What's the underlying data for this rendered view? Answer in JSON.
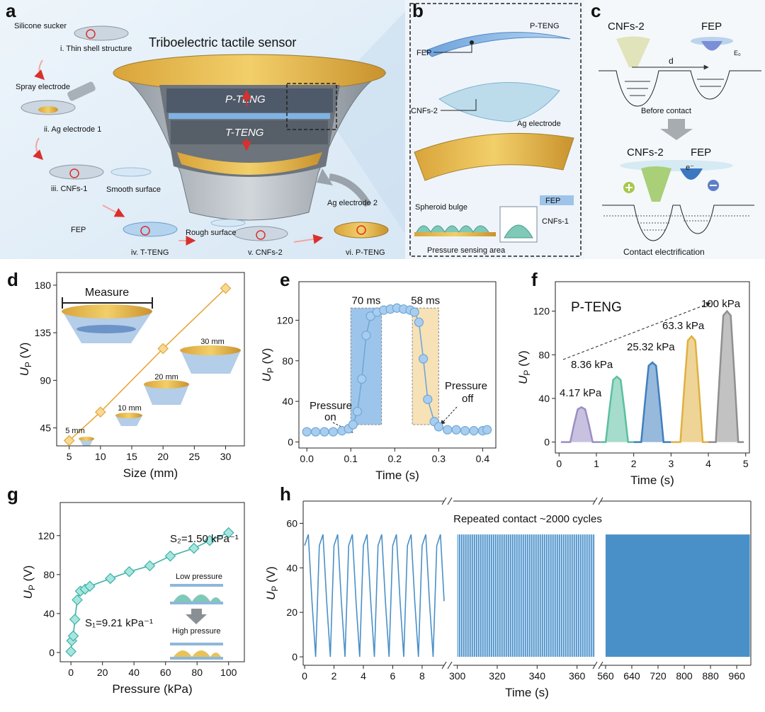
{
  "diagrams": {
    "a": {
      "label": "a",
      "title": "Triboelectric tactile sensor",
      "layers": [
        "P-TENG",
        "T-TENG"
      ],
      "steps": [
        "Silicone sucker",
        "i. Thin shell structure",
        "Spray electrode",
        "ii. Ag electrode 1",
        "iii. CNFs-1",
        "Smooth surface",
        "FEP",
        "iv. T-TENG",
        "Rough surface",
        "v. CNFs-2",
        "Ag electrode 2",
        "vi. P-TENG"
      ]
    },
    "b": {
      "label": "b",
      "labels": [
        "P-TENG",
        "FEP",
        "CNFs-2",
        "Ag electrode",
        "Spheroid bulge",
        "FEP",
        "CNFs-1",
        "Pressure sensing area"
      ]
    },
    "c": {
      "label": "c",
      "labels": [
        "CNFs-2",
        "FEP",
        "d",
        "E₀",
        "Before contact",
        "CNFs-2",
        "FEP",
        "e⁻",
        "Contact electrification"
      ]
    }
  },
  "chart_data": [
    {
      "type": "line",
      "panel": "d",
      "xlabel": "Size (mm)",
      "ylabel": {
        "symbol": "U",
        "subscript": "P",
        "unit": " (V)"
      },
      "x": [
        5,
        10,
        20,
        30
      ],
      "series": [
        {
          "color": "#e3a83e",
          "marker_fill": "#f8d993",
          "values": [
            33,
            60,
            120,
            177
          ]
        }
      ],
      "markers": "diamond",
      "xlim": [
        3,
        33
      ],
      "ylim": [
        28,
        192
      ],
      "xticks": [
        5,
        10,
        15,
        20,
        25,
        30
      ],
      "yticks": [
        45,
        90,
        135,
        180
      ],
      "annotations": [
        "Measure",
        "5 mm",
        "10 mm",
        "20 mm",
        "30 mm"
      ]
    },
    {
      "type": "line",
      "panel": "e",
      "xlabel": "Time (s)",
      "ylabel": {
        "symbol": "U",
        "subscript": "P",
        "unit": " (V)"
      },
      "x": [
        0,
        0.02,
        0.04,
        0.06,
        0.08,
        0.095,
        0.105,
        0.115,
        0.125,
        0.135,
        0.145,
        0.16,
        0.175,
        0.19,
        0.205,
        0.22,
        0.235,
        0.245,
        0.255,
        0.265,
        0.275,
        0.29,
        0.3,
        0.32,
        0.34,
        0.36,
        0.38,
        0.4,
        0.41
      ],
      "series": [
        {
          "color": "#6fa8d8",
          "marker_fill": "#a9cdef",
          "values": [
            10,
            10,
            10,
            10,
            11,
            13,
            17,
            30,
            62,
            105,
            124,
            128,
            130,
            131,
            132,
            131,
            130,
            128,
            118,
            82,
            42,
            20,
            15,
            12,
            12,
            11,
            11,
            11,
            12
          ]
        }
      ],
      "markers": "circle",
      "regions": [
        {
          "x": [
            0.1,
            0.17
          ],
          "y": [
            17,
            132
          ],
          "color": "#8cbbe8",
          "label": "70 ms"
        },
        {
          "x": [
            0.24,
            0.3
          ],
          "y": [
            17,
            132
          ],
          "color": "#f6dcaa",
          "label": "58 ms"
        }
      ],
      "xlim": [
        -0.018,
        0.43
      ],
      "ylim": [
        -6,
        158
      ],
      "xticks": [
        {
          "value": 0,
          "label": "0.0"
        },
        0.1,
        0.2,
        0.3,
        0.4
      ],
      "yticks": [
        0,
        40,
        80,
        120
      ],
      "annotations": [
        {
          "lines": [
            "Pressure",
            "on"
          ]
        },
        {
          "lines": [
            "Pressure",
            "off"
          ]
        }
      ]
    },
    {
      "type": "line",
      "panel": "f",
      "xlabel": "Time (s)",
      "ylabel": {
        "symbol": "U",
        "subscript": "P",
        "unit": " (V)"
      },
      "series": [
        {
          "name": "4.17 kPa",
          "color": "#9b8ec4",
          "x": [
            0.05,
            0.3,
            0.4,
            0.5,
            0.6,
            0.7,
            0.8,
            0.9,
            1.1
          ],
          "values": [
            0,
            0,
            16,
            30,
            32,
            30,
            16,
            0,
            0
          ]
        },
        {
          "name": "8.36 kPa",
          "color": "#5bbfa0",
          "x": [
            1.1,
            1.25,
            1.35,
            1.45,
            1.55,
            1.65,
            1.75,
            1.85,
            2.0
          ],
          "values": [
            0,
            0,
            30,
            57,
            60,
            57,
            30,
            0,
            0
          ]
        },
        {
          "name": "25.32 kPa",
          "color": "#3f7fc0",
          "x": [
            2.0,
            2.2,
            2.3,
            2.4,
            2.5,
            2.6,
            2.7,
            2.8,
            3.0
          ],
          "values": [
            0,
            0,
            36,
            70,
            73,
            70,
            36,
            0,
            0
          ]
        },
        {
          "name": "63.3 kPa",
          "color": "#e0b040",
          "x": [
            3.0,
            3.25,
            3.35,
            3.45,
            3.55,
            3.65,
            3.75,
            3.85,
            4.0
          ],
          "values": [
            0,
            0,
            48,
            93,
            97,
            93,
            48,
            0,
            0
          ]
        },
        {
          "name": "100 kPa",
          "color": "#8f8f8f",
          "x": [
            4.0,
            4.2,
            4.3,
            4.4,
            4.5,
            4.6,
            4.7,
            4.8,
            4.95
          ],
          "values": [
            0,
            0,
            60,
            116,
            120,
            116,
            60,
            0,
            0
          ]
        }
      ],
      "xlim": [
        -0.1,
        5.1
      ],
      "ylim": [
        -10,
        147
      ],
      "xticks": [
        0,
        1,
        2,
        3,
        4,
        5
      ],
      "yticks": [
        0,
        40,
        80,
        120
      ],
      "annotations": [
        "P-TENG"
      ]
    },
    {
      "type": "line",
      "panel": "g",
      "xlabel": "Pressure (kPa)",
      "ylabel": {
        "symbol": "U",
        "subscript": "P",
        "unit": " (V)"
      },
      "x": [
        0,
        0.5,
        1.5,
        2.5,
        4,
        6,
        9,
        12,
        25,
        37,
        50,
        63,
        78,
        88,
        100
      ],
      "series": [
        {
          "color": "#3fb0a6",
          "marker_fill": "#a6e6de",
          "values": [
            1,
            12,
            17,
            34,
            54,
            63,
            65,
            68,
            76,
            83,
            89,
            99,
            107,
            115,
            123
          ]
        }
      ],
      "markers": "diamond",
      "xlim": [
        -6.8,
        110
      ],
      "ylim": [
        -9.5,
        154
      ],
      "xticks": [
        0,
        20,
        40,
        60,
        80,
        100
      ],
      "yticks": [
        0,
        40,
        80,
        120
      ],
      "annotations": [
        "S₂=1.50 kPa⁻¹",
        "S₁=9.21 kPa⁻¹",
        "Low pressure",
        "High pressure"
      ]
    },
    {
      "type": "line",
      "panel": "h",
      "xlabel": "Time (s)",
      "ylabel": {
        "symbol": "U",
        "subscript": "P",
        "unit": " (V)"
      },
      "color": "#4a90c8",
      "ylim": [
        -3.8,
        70
      ],
      "yticks": [
        0,
        20,
        40,
        60
      ],
      "segments": [
        {
          "xlim": [
            -0.1,
            9.5
          ],
          "xticks": [
            0,
            2,
            4,
            6,
            8
          ],
          "x": [
            0,
            0.25,
            0.5,
            0.75,
            1,
            1.25,
            1.5,
            1.75,
            2,
            2.25,
            2.5,
            2.75,
            3,
            3.25,
            3.5,
            3.75,
            4,
            4.25,
            4.5,
            4.75,
            5,
            5.25,
            5.5,
            5.75,
            6,
            6.25,
            6.5,
            6.75,
            7,
            7.25,
            7.5,
            7.75,
            8,
            8.25,
            8.5,
            8.75,
            9,
            9.25,
            9.5
          ],
          "values": [
            50,
            55,
            25,
            0,
            50,
            55,
            25,
            0,
            50,
            55,
            25,
            0,
            50,
            55,
            25,
            0,
            50,
            55,
            25,
            0,
            50,
            55,
            25,
            0,
            50,
            55,
            25,
            0,
            50,
            55,
            25,
            0,
            50,
            55,
            25,
            0,
            50,
            55,
            25
          ]
        },
        {
          "xlim": [
            298,
            369
          ],
          "xticks": [
            300,
            320,
            340,
            360
          ],
          "band_x": [
            300,
            369
          ],
          "band_y": [
            0,
            55
          ]
        },
        {
          "xlim": [
            545,
            1003
          ],
          "xticks": [
            560,
            640,
            720,
            800,
            880,
            960
          ],
          "band_x": [
            560,
            1000
          ],
          "band_y": [
            0,
            55
          ]
        }
      ],
      "annotations": [
        "Repeated contact ~2000 cycles"
      ]
    }
  ]
}
